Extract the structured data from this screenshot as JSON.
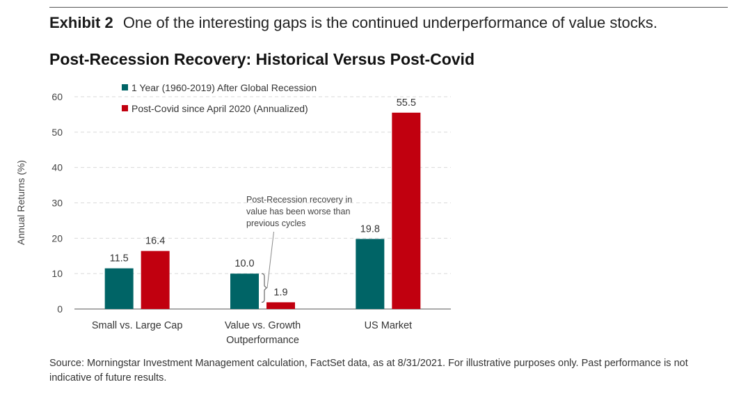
{
  "header": {
    "exhibit_label": "Exhibit 2",
    "exhibit_desc": "One of the interesting gaps is the continued underperformance of value stocks.",
    "subtitle": "Post-Recession Recovery: Historical Versus Post-Covid"
  },
  "footer": {
    "source": "Source: Morningstar Investment Management calculation, FactSet data, as at 8/31/2021. For illustrative purposes only. Past performance is not indicative of future results."
  },
  "chart_data": {
    "type": "bar",
    "title": "Post-Recession Recovery: Historical Versus Post-Covid",
    "ylabel": "Annual Returns (%)",
    "xlabel": "",
    "ylim": [
      0,
      60
    ],
    "yticks": [
      0,
      10,
      20,
      30,
      40,
      50,
      60
    ],
    "grid": true,
    "legend_position": "top-left",
    "categories": [
      [
        "Small vs. Large Cap"
      ],
      [
        "Value vs. Growth",
        "Outperformance"
      ],
      [
        "US Market"
      ]
    ],
    "series": [
      {
        "name": "1 Year (1960-2019) After Global Recession",
        "color": "#006466",
        "values": [
          11.5,
          10.0,
          19.8
        ]
      },
      {
        "name": "Post-Covid since April 2020 (Annualized)",
        "color": "#c1000f",
        "values": [
          16.4,
          1.9,
          55.5
        ]
      }
    ],
    "annotation": {
      "text": [
        "Post-Recession recovery in",
        "value has been worse than",
        "previous cycles"
      ],
      "category_index": 1
    }
  }
}
